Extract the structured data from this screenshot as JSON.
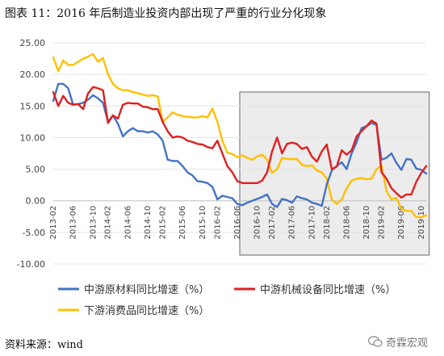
{
  "figure_title": "图表 11：2016 年后制造业投资内部出现了严重的行业分化现象",
  "source": "资料来源：wind",
  "watermark": "奇霖宏观",
  "chart_data": {
    "type": "line",
    "ylim": [
      -10,
      25
    ],
    "yticks": [
      "25.00",
      "20.00",
      "15.00",
      "10.00",
      "5.00",
      "0.00",
      "-5.00",
      "-10.00"
    ],
    "ytick_values": [
      25,
      20,
      15,
      10,
      5,
      0,
      -5,
      -10
    ],
    "x": [
      "2013-02",
      "2013-03",
      "2013-04",
      "2013-05",
      "2013-06",
      "2013-07",
      "2013-08",
      "2013-09",
      "2013-10",
      "2013-11",
      "2013-12",
      "2014-02",
      "2014-03",
      "2014-04",
      "2014-05",
      "2014-06",
      "2014-07",
      "2014-08",
      "2014-09",
      "2014-10",
      "2014-11",
      "2014-12",
      "2015-02",
      "2015-03",
      "2015-04",
      "2015-05",
      "2015-06",
      "2015-07",
      "2015-08",
      "2015-09",
      "2015-10",
      "2015-11",
      "2015-12",
      "2016-02",
      "2016-03",
      "2016-04",
      "2016-05",
      "2016-06",
      "2016-07",
      "2016-08",
      "2016-09",
      "2016-10",
      "2016-11",
      "2016-12",
      "2017-02",
      "2017-03",
      "2017-04",
      "2017-05",
      "2017-06",
      "2017-07",
      "2017-08",
      "2017-09",
      "2017-10",
      "2017-11",
      "2017-12",
      "2018-02",
      "2018-03",
      "2018-04",
      "2018-05",
      "2018-06",
      "2018-07",
      "2018-08",
      "2018-09",
      "2018-10",
      "2018-11",
      "2018-12",
      "2019-02",
      "2019-03",
      "2019-04",
      "2019-05",
      "2019-06",
      "2019-07",
      "2019-08",
      "2019-09",
      "2019-10",
      "2019-11"
    ],
    "xtick_labels": [
      "2013-02",
      "2013-06",
      "2013-10",
      "2014-02",
      "2014-06",
      "2014-10",
      "2015-02",
      "2015-06",
      "2015-10",
      "2016-02",
      "2016-06",
      "2016-10",
      "2017-02",
      "2017-06",
      "2017-10",
      "2018-02",
      "2018-06",
      "2018-10",
      "2019-02",
      "2019-06",
      "2019-10"
    ],
    "highlight_range": [
      "2016-07",
      "2019-11"
    ],
    "legend_position": "bottom",
    "series": [
      {
        "name": "中游原材料同比增速（%）",
        "color": "#4472C4",
        "values": [
          15.8,
          18.5,
          18.5,
          17.8,
          15.2,
          15.3,
          15.5,
          16.0,
          16.7,
          16.2,
          15.5,
          12.5,
          13.5,
          12.2,
          10.2,
          11.0,
          11.5,
          11.0,
          11.0,
          10.8,
          11.0,
          10.5,
          9.5,
          6.5,
          6.3,
          6.3,
          5.5,
          4.5,
          4.0,
          3.1,
          3.0,
          2.8,
          2.2,
          0.2,
          0.8,
          0.6,
          0.4,
          -0.5,
          -0.7,
          -0.3,
          0.0,
          0.3,
          0.6,
          1.0,
          -0.5,
          -1.0,
          0.3,
          0.1,
          -0.3,
          0.7,
          0.4,
          0.2,
          -0.3,
          -0.5,
          -0.8,
          2.6,
          4.8,
          5.5,
          6.1,
          5.0,
          7.5,
          9.3,
          11.5,
          11.8,
          12.3,
          12.0,
          6.5,
          6.8,
          7.5,
          6.0,
          4.9,
          6.6,
          6.5,
          5.1,
          4.9,
          4.3
        ]
      },
      {
        "name": "中游机械设备同比增速（%）",
        "color": "#E02020",
        "values": [
          17.2,
          15.0,
          16.6,
          15.5,
          15.2,
          15.3,
          14.5,
          17.0,
          18.0,
          17.8,
          17.5,
          12.3,
          13.5,
          13.0,
          15.2,
          15.5,
          15.4,
          15.4,
          14.9,
          14.8,
          14.5,
          14.5,
          12.5,
          11.0,
          10.0,
          10.2,
          10.0,
          9.5,
          9.3,
          9.0,
          8.9,
          8.5,
          8.3,
          9.5,
          7.5,
          5.5,
          4.5,
          3.1,
          2.8,
          2.8,
          2.8,
          2.8,
          3.2,
          4.5,
          7.8,
          10.0,
          7.5,
          9.0,
          9.2,
          9.0,
          8.2,
          8.5,
          7.0,
          6.2,
          7.8,
          8.9,
          5.0,
          5.4,
          8.0,
          7.3,
          8.0,
          10.2,
          11.0,
          11.8,
          12.7,
          12.2,
          4.5,
          3.5,
          2.0,
          1.2,
          0.5,
          1.0,
          1.0,
          3.0,
          4.4,
          5.5
        ]
      },
      {
        "name": "下游消费品同比增速（%）",
        "color": "#FFC000",
        "values": [
          22.7,
          20.5,
          22.2,
          21.5,
          21.5,
          22.0,
          22.5,
          22.8,
          23.2,
          22.0,
          22.6,
          20.0,
          18.5,
          17.8,
          17.5,
          17.5,
          17.2,
          17.0,
          16.8,
          16.6,
          16.7,
          16.5,
          12.5,
          13.2,
          14.0,
          13.6,
          13.4,
          13.3,
          13.2,
          13.2,
          13.4,
          13.2,
          14.6,
          12.5,
          9.5,
          7.6,
          7.4,
          6.9,
          7.2,
          6.8,
          6.5,
          7.0,
          7.3,
          6.5,
          4.4,
          5.0,
          6.8,
          6.6,
          6.6,
          6.6,
          5.7,
          5.5,
          5.6,
          4.8,
          4.5,
          3.5,
          0.2,
          -0.5,
          0.2,
          2.0,
          3.2,
          3.5,
          3.6,
          3.4,
          3.5,
          5.0,
          5.6,
          1.5,
          0.2,
          0.5,
          -1.3,
          -1.6,
          -1.6,
          -2.6,
          -2.6,
          -2.3
        ]
      }
    ]
  }
}
